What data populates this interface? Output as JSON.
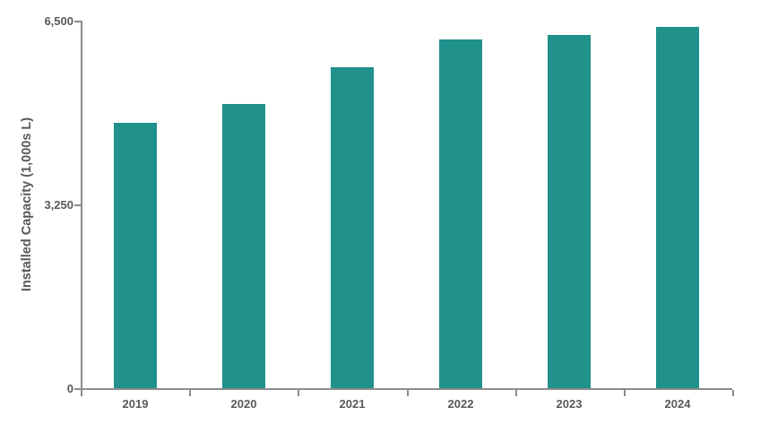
{
  "chart_data": {
    "type": "bar",
    "title": "",
    "categories": [
      "2019",
      "2020",
      "2021",
      "2022",
      "2023",
      "2024"
    ],
    "values": [
      4700,
      5020,
      5680,
      6170,
      6250,
      6390
    ],
    "xlabel": "",
    "ylabel": "Installed Capacity (1,000s L)",
    "ylim": [
      0,
      6500
    ],
    "yticks": [
      {
        "value": 0,
        "label": "0"
      },
      {
        "value": 3250,
        "label": "3,250"
      },
      {
        "value": 6500,
        "label": "6,500"
      }
    ],
    "grid": false,
    "legend": false,
    "colors": {
      "bar": "#21918C",
      "axis": "#8C8C8C",
      "tick_label": "#595959"
    }
  }
}
